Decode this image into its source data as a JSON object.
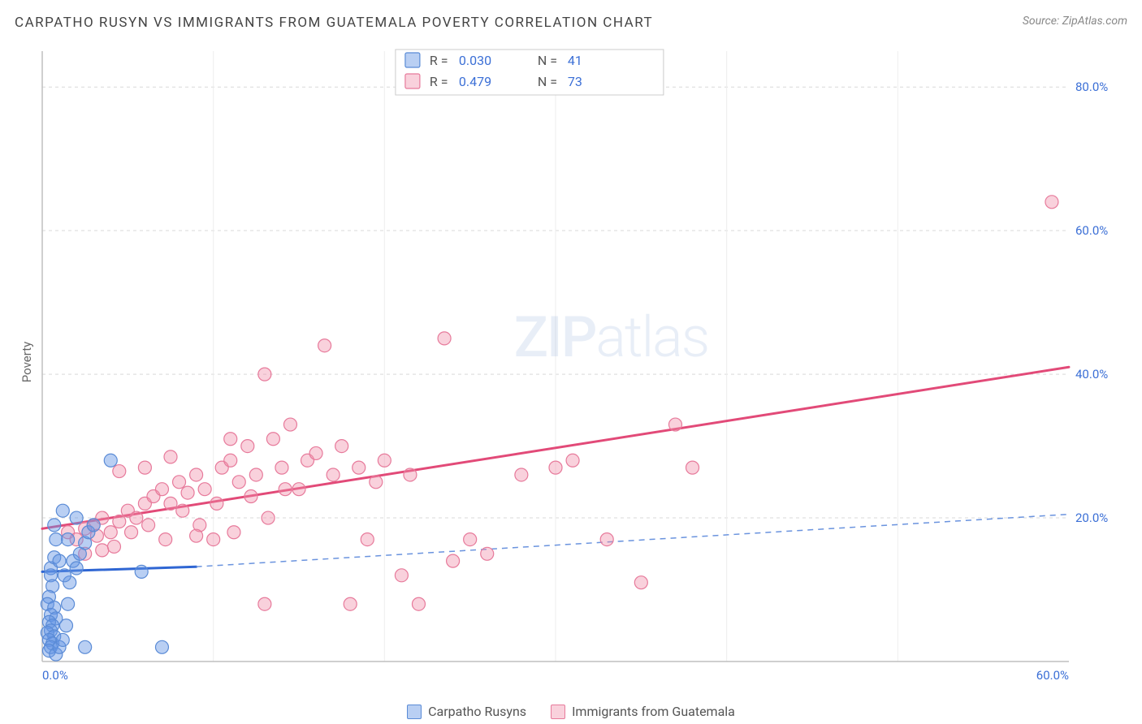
{
  "title": "CARPATHO RUSYN VS IMMIGRANTS FROM GUATEMALA POVERTY CORRELATION CHART",
  "source": "Source: ZipAtlas.com",
  "y_axis_label": "Poverty",
  "watermark": {
    "strong": "ZIP",
    "rest": "atlas"
  },
  "legend_box": {
    "series": [
      {
        "r_label": "R = ",
        "r_val": "0.030",
        "n_label": "N = ",
        "n_val": "41"
      },
      {
        "r_label": "R = ",
        "r_val": "0.479",
        "n_label": "N = ",
        "n_val": "73"
      }
    ]
  },
  "bottom_legend": {
    "a": "Carpatho Rusyns",
    "b": "Immigrants from Guatemala"
  },
  "chart": {
    "type": "scatter",
    "xlim": [
      0,
      60
    ],
    "ylim": [
      0,
      85
    ],
    "x_ticks": [
      0,
      60
    ],
    "x_tick_labels": [
      "0.0%",
      "60.0%"
    ],
    "y_ticks": [
      20,
      40,
      60,
      80
    ],
    "y_tick_labels": [
      "20.0%",
      "40.0%",
      "60.0%",
      "80.0%"
    ],
    "grid_color": "#d9d9d9",
    "axis_color": "#bfbfbf",
    "tick_label_color": "#3b6fd6",
    "tick_label_fontsize": 15,
    "colors": {
      "blue_fill": "rgba(99,148,229,0.45)",
      "blue_stroke": "#5a8bd6",
      "pink_fill": "rgba(241,140,168,0.40)",
      "pink_stroke": "#e77a9b",
      "blue_line": "#2f66d3",
      "blue_dash": "#6a93de",
      "pink_line": "#e24a78"
    },
    "marker_radius": 8,
    "line_width": 3,
    "series_blue": {
      "points": [
        [
          0.5,
          13
        ],
        [
          0.7,
          14.5
        ],
        [
          0.5,
          12
        ],
        [
          0.6,
          10.5
        ],
        [
          0.4,
          9
        ],
        [
          0.3,
          8
        ],
        [
          0.7,
          7.5
        ],
        [
          0.5,
          6.5
        ],
        [
          0.8,
          6
        ],
        [
          0.4,
          5.5
        ],
        [
          0.6,
          5
        ],
        [
          0.5,
          4.3
        ],
        [
          0.3,
          4
        ],
        [
          0.7,
          3.5
        ],
        [
          0.4,
          3
        ],
        [
          0.6,
          2.5
        ],
        [
          0.5,
          2
        ],
        [
          0.4,
          1.5
        ],
        [
          0.8,
          1
        ],
        [
          1.0,
          2
        ],
        [
          1.2,
          3
        ],
        [
          1.4,
          5
        ],
        [
          1.5,
          8
        ],
        [
          1.6,
          11
        ],
        [
          1.8,
          14
        ],
        [
          2.0,
          13
        ],
        [
          2.2,
          15
        ],
        [
          2.5,
          16.5
        ],
        [
          2.7,
          18
        ],
        [
          3.0,
          19
        ],
        [
          1.2,
          21
        ],
        [
          1.5,
          17
        ],
        [
          2.0,
          20
        ],
        [
          0.8,
          17
        ],
        [
          0.7,
          19
        ],
        [
          1.0,
          14
        ],
        [
          1.3,
          12
        ],
        [
          4.0,
          28
        ],
        [
          5.8,
          12.5
        ],
        [
          7.0,
          2
        ],
        [
          2.5,
          2
        ]
      ],
      "trend_solid": {
        "x1": 0,
        "y1": 12.5,
        "x2": 9,
        "y2": 13.2
      },
      "trend_dash": {
        "x1": 9,
        "y1": 13.2,
        "x2": 60,
        "y2": 20.5
      }
    },
    "series_pink": {
      "points": [
        [
          1.5,
          18
        ],
        [
          2.0,
          17
        ],
        [
          2.5,
          18.5
        ],
        [
          3.0,
          19
        ],
        [
          3.2,
          17.5
        ],
        [
          3.5,
          20
        ],
        [
          4.0,
          18
        ],
        [
          4.5,
          19.5
        ],
        [
          5.0,
          21
        ],
        [
          5.5,
          20
        ],
        [
          6.0,
          22
        ],
        [
          6.5,
          23
        ],
        [
          7.0,
          24
        ],
        [
          7.5,
          22
        ],
        [
          8.0,
          25
        ],
        [
          8.5,
          23.5
        ],
        [
          9.0,
          26
        ],
        [
          9.5,
          24
        ],
        [
          10.0,
          17
        ],
        [
          10.5,
          27
        ],
        [
          11.0,
          28
        ],
        [
          11.5,
          25
        ],
        [
          12.0,
          30
        ],
        [
          12.5,
          26
        ],
        [
          13.0,
          40
        ],
        [
          13.0,
          8
        ],
        [
          13.5,
          31
        ],
        [
          14.0,
          27
        ],
        [
          14.5,
          33
        ],
        [
          15.0,
          24
        ],
        [
          15.5,
          28
        ],
        [
          16.0,
          29
        ],
        [
          16.5,
          44
        ],
        [
          17.0,
          26
        ],
        [
          17.5,
          30
        ],
        [
          18.0,
          8
        ],
        [
          18.5,
          27
        ],
        [
          19.0,
          17
        ],
        [
          19.5,
          25
        ],
        [
          20.0,
          28
        ],
        [
          21.0,
          12
        ],
        [
          21.5,
          26
        ],
        [
          22.0,
          8
        ],
        [
          23.5,
          45
        ],
        [
          24.0,
          14
        ],
        [
          25.0,
          17
        ],
        [
          26.0,
          15
        ],
        [
          28.0,
          26
        ],
        [
          30.0,
          27
        ],
        [
          31.0,
          28
        ],
        [
          33.0,
          17
        ],
        [
          35.0,
          11
        ],
        [
          37.0,
          33
        ],
        [
          38.0,
          27
        ],
        [
          59.0,
          64
        ],
        [
          2.5,
          15
        ],
        [
          3.5,
          15.5
        ],
        [
          4.2,
          16
        ],
        [
          5.2,
          18
        ],
        [
          6.2,
          19
        ],
        [
          7.2,
          17
        ],
        [
          8.2,
          21
        ],
        [
          9.2,
          19
        ],
        [
          10.2,
          22
        ],
        [
          11.2,
          18
        ],
        [
          12.2,
          23
        ],
        [
          13.2,
          20
        ],
        [
          14.2,
          24
        ],
        [
          4.5,
          26.5
        ],
        [
          6.0,
          27
        ],
        [
          7.5,
          28.5
        ],
        [
          9.0,
          17.5
        ],
        [
          11.0,
          31
        ]
      ],
      "trend": {
        "x1": 0,
        "y1": 18.5,
        "x2": 60,
        "y2": 41.0
      }
    }
  }
}
